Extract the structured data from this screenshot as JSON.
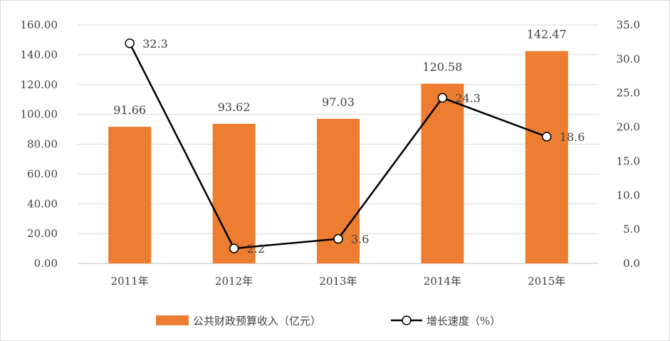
{
  "chart_data": {
    "type": "bar+line",
    "categories": [
      "2011年",
      "2012年",
      "2013年",
      "2014年",
      "2015年"
    ],
    "series": [
      {
        "name": "公共财政预算收入（亿元）",
        "type": "bar",
        "axis": "left",
        "values": [
          91.66,
          93.62,
          97.03,
          120.58,
          142.47
        ],
        "labels": [
          "91.66",
          "93.62",
          "97.03",
          "120.58",
          "142.47"
        ],
        "color": "#ed7d31"
      },
      {
        "name": "增长速度（%）",
        "type": "line",
        "axis": "right",
        "values": [
          32.3,
          2.2,
          3.6,
          24.3,
          18.6
        ],
        "labels": [
          "32.3",
          "2.2",
          "3.6",
          "24.3",
          "18.6"
        ],
        "color": "#000000"
      }
    ],
    "y_left": {
      "ylim": [
        0,
        160
      ],
      "ticks": [
        "0.00",
        "20.00",
        "40.00",
        "60.00",
        "80.00",
        "100.00",
        "120.00",
        "140.00",
        "160.00"
      ]
    },
    "y_right": {
      "ylim": [
        0,
        35
      ],
      "ticks": [
        "0.0",
        "5.0",
        "10.0",
        "15.0",
        "20.0",
        "25.0",
        "30.0",
        "35.0"
      ]
    },
    "grid": true,
    "legend": "bottom"
  }
}
